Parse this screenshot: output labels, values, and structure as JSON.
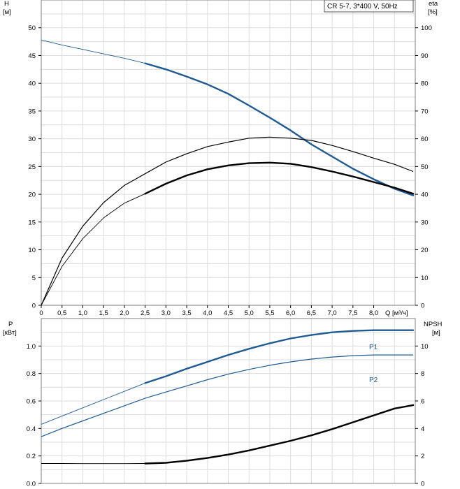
{
  "legend": {
    "text": "CR 5-7, 3*400 V, 50Hz"
  },
  "chart_data": [
    {
      "type": "line",
      "x_axis": {
        "label": "Q [м³/ч]",
        "range": [
          0,
          9.0
        ],
        "ticks": [
          0,
          0.5,
          1.0,
          1.5,
          2.0,
          2.5,
          3.0,
          3.5,
          4.0,
          4.5,
          5.0,
          5.5,
          6.0,
          6.5,
          7.0,
          7.5,
          8.0
        ],
        "tick_labels": [
          "0",
          "0,5",
          "1,0",
          "1,5",
          "2,0",
          "2,5",
          "3,0",
          "3,5",
          "4,0",
          "4,5",
          "5,0",
          "5,5",
          "6,0",
          "6,5",
          "7,0",
          "7,5",
          "8,0"
        ]
      },
      "y_left": {
        "label_line1": "H",
        "label_line2": "[м]",
        "range": [
          0,
          55
        ],
        "ticks": [
          0,
          5,
          10,
          15,
          20,
          25,
          30,
          35,
          40,
          45,
          50
        ]
      },
      "y_right": {
        "label_line1": "eta",
        "label_line2": "[%]",
        "range": [
          0,
          110
        ],
        "ticks": [
          0,
          10,
          20,
          30,
          40,
          50,
          60,
          70,
          80,
          90,
          100
        ]
      },
      "grid": true,
      "series": [
        {
          "axis": "left",
          "color": "#1f5a93",
          "x": [
            0,
            0.5,
            1.0,
            1.5,
            2.0,
            2.5,
            3.0,
            3.5,
            4.0,
            4.5,
            5.0,
            5.5,
            6.0,
            6.5,
            7.0,
            7.5,
            8.0,
            8.5,
            8.95
          ],
          "y": [
            47.8,
            46.9,
            46.1,
            45.3,
            44.5,
            43.6,
            42.5,
            41.2,
            39.8,
            38.1,
            36.0,
            33.8,
            31.5,
            29.0,
            26.8,
            24.6,
            22.7,
            21.0,
            19.8
          ],
          "emphasis_from": 2.5
        },
        {
          "axis": "right",
          "color": "#000000",
          "x": [
            0,
            0.5,
            1.0,
            1.5,
            2.0,
            2.5,
            3.0,
            3.5,
            4.0,
            4.5,
            5.0,
            5.5,
            6.0,
            6.5,
            7.0,
            7.5,
            8.0,
            8.5,
            8.95
          ],
          "y": [
            0,
            17,
            28.5,
            37,
            43.2,
            47.4,
            51.6,
            54.6,
            57.2,
            58.8,
            60.2,
            60.6,
            60.2,
            59.4,
            57.6,
            55.4,
            53.0,
            50.8,
            48.2
          ],
          "emphasis_from": null
        },
        {
          "axis": "right",
          "color": "#000000",
          "x": [
            0,
            0.5,
            1.0,
            1.5,
            2.0,
            2.5,
            3.0,
            3.5,
            4.0,
            4.5,
            5.0,
            5.5,
            6.0,
            6.5,
            7.0,
            7.5,
            8.0,
            8.5,
            8.95
          ],
          "y": [
            0,
            14,
            24,
            31.5,
            36.8,
            40.2,
            43.8,
            46.8,
            49.0,
            50.4,
            51.2,
            51.4,
            51.0,
            49.8,
            48.2,
            46.4,
            44.4,
            42.4,
            40.2
          ],
          "emphasis_from": 2.5
        }
      ]
    },
    {
      "type": "line",
      "x_axis": {
        "range": [
          0,
          9.0
        ]
      },
      "y_left": {
        "label_line1": "P",
        "label_line2": "[кВт]",
        "range": [
          0,
          1.2
        ],
        "ticks": [
          0.0,
          0.2,
          0.4,
          0.6,
          0.8,
          1.0
        ],
        "tick_labels": [
          "0.0",
          "0.2",
          "0.4",
          "0.6",
          "0.8",
          "1.0"
        ]
      },
      "y_right": {
        "label_line1": "NPSH",
        "label_line2": "[м]",
        "range": [
          0,
          12
        ],
        "ticks": [
          0,
          2,
          4,
          6,
          8,
          10
        ]
      },
      "grid": true,
      "series": [
        {
          "name": "P1",
          "axis": "left",
          "color": "#1f5a93",
          "x": [
            0,
            0.5,
            1.0,
            1.5,
            2.0,
            2.5,
            3.0,
            3.5,
            4.0,
            4.5,
            5.0,
            5.5,
            6.0,
            6.5,
            7.0,
            7.5,
            8.0,
            8.5,
            8.95
          ],
          "y": [
            0.43,
            0.49,
            0.55,
            0.61,
            0.67,
            0.73,
            0.78,
            0.835,
            0.885,
            0.935,
            0.98,
            1.02,
            1.055,
            1.08,
            1.1,
            1.11,
            1.115,
            1.115,
            1.115
          ],
          "emphasis_from": 2.5
        },
        {
          "name": "P2",
          "axis": "left",
          "color": "#1f5a93",
          "x": [
            0,
            0.5,
            1.0,
            1.5,
            2.0,
            2.5,
            3.0,
            3.5,
            4.0,
            4.5,
            5.0,
            5.5,
            6.0,
            6.5,
            7.0,
            7.5,
            8.0,
            8.5,
            8.95
          ],
          "y": [
            0.34,
            0.4,
            0.455,
            0.51,
            0.565,
            0.62,
            0.665,
            0.71,
            0.755,
            0.795,
            0.83,
            0.86,
            0.885,
            0.905,
            0.92,
            0.93,
            0.935,
            0.935,
            0.935
          ],
          "emphasis_from": null
        },
        {
          "axis": "right",
          "color": "#000000",
          "x": [
            0,
            0.5,
            1.0,
            1.5,
            2.0,
            2.5,
            3.0,
            3.5,
            4.0,
            4.5,
            5.0,
            5.5,
            6.0,
            6.5,
            7.0,
            7.5,
            8.0,
            8.5,
            8.95
          ],
          "y": [
            1.45,
            1.45,
            1.44,
            1.44,
            1.44,
            1.45,
            1.5,
            1.65,
            1.85,
            2.1,
            2.4,
            2.75,
            3.1,
            3.5,
            3.95,
            4.45,
            4.95,
            5.45,
            5.7
          ],
          "emphasis_from": 2.5
        }
      ]
    }
  ]
}
